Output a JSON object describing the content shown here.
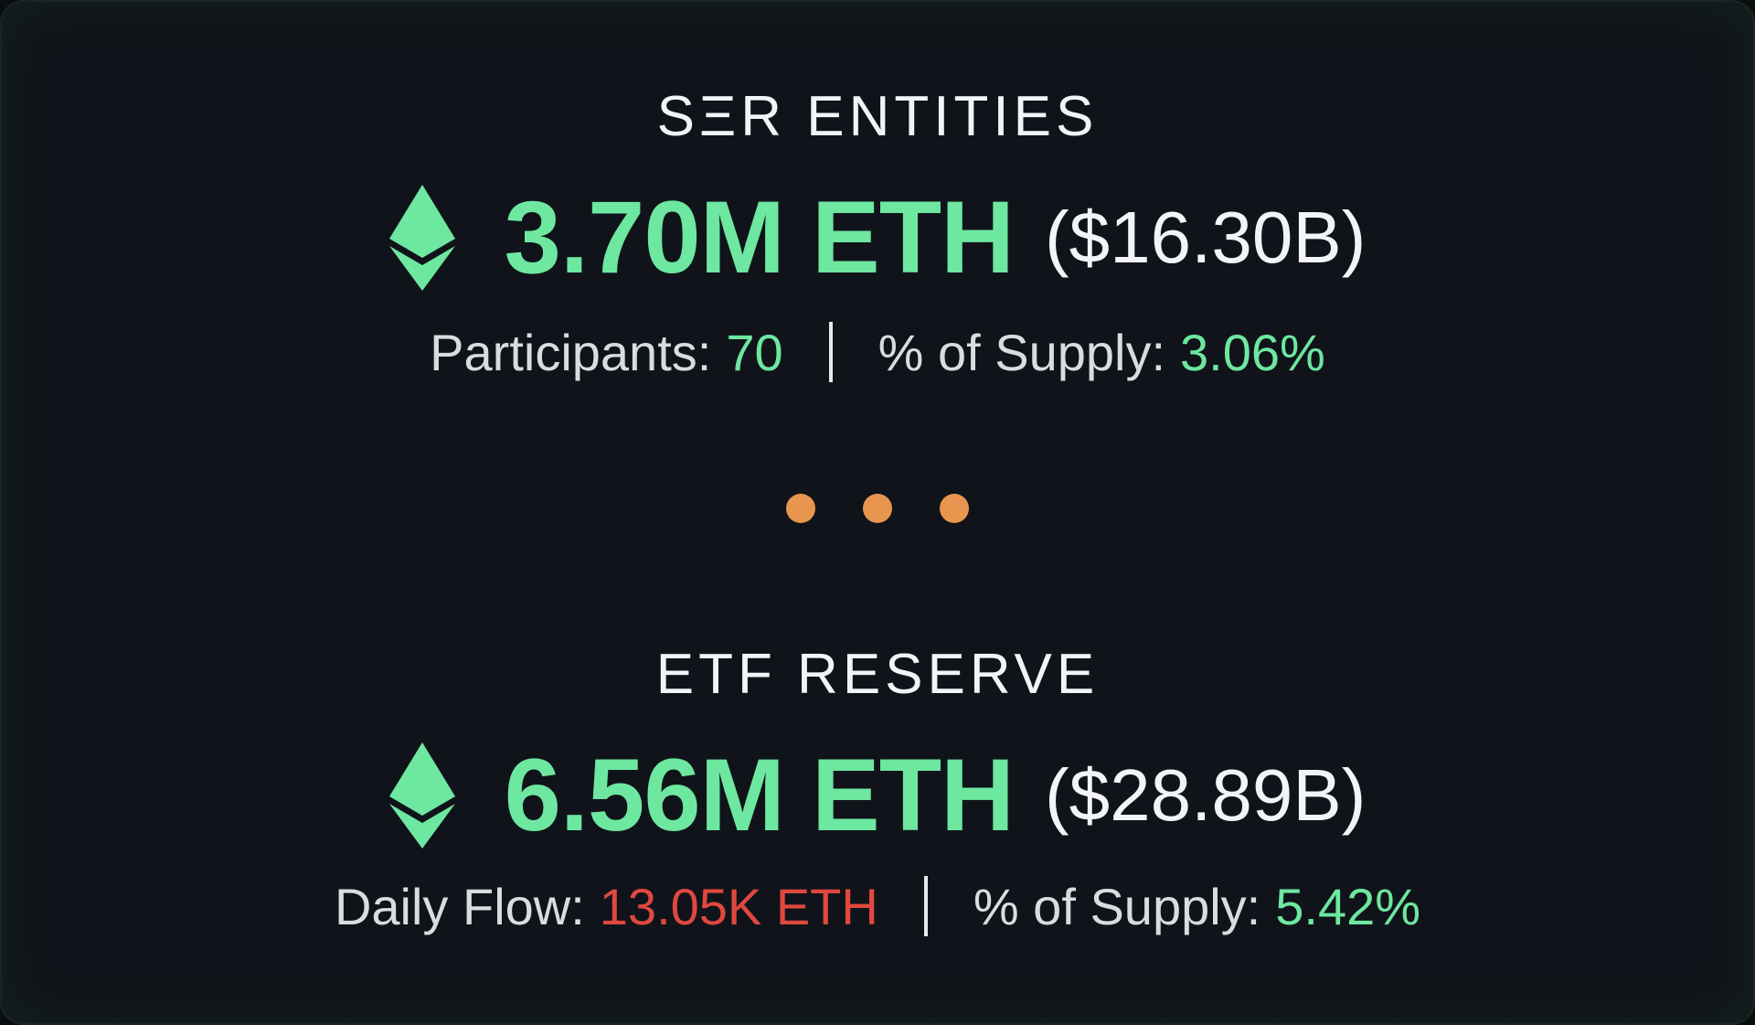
{
  "sections": [
    {
      "title": "SΞR ENTITIES",
      "amount": "3.70M ETH",
      "usd": "($16.30B)",
      "stat1_label": "Participants:",
      "stat1_value": "70",
      "stat2_label": "% of Supply:",
      "stat2_value": "3.06%"
    },
    {
      "title": "ETF RESERVE",
      "amount": "6.56M ETH",
      "usd": "($28.89B)",
      "stat1_label": "Daily Flow:",
      "stat1_value": "13.05K ETH",
      "stat2_label": "% of Supply:",
      "stat2_value": "5.42%"
    }
  ],
  "colors": {
    "accent_green": "#6ee7a1",
    "negative_red": "#e0483f",
    "dot_orange": "#e8964f",
    "background": "#10141a"
  },
  "icons": [
    "ethereum-icon",
    "ellipsis-dots"
  ]
}
